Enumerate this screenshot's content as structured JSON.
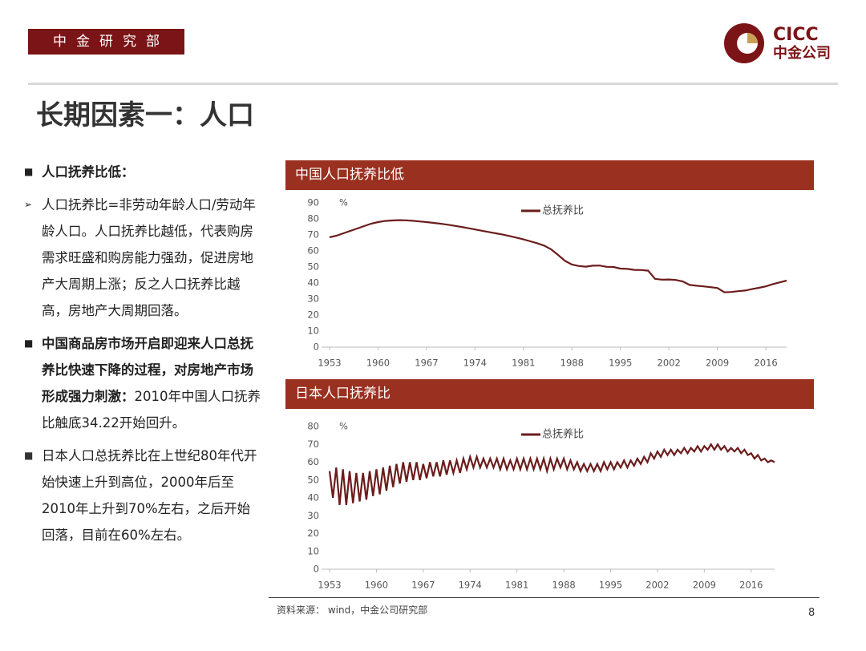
{
  "header": {
    "org": "中金研究部",
    "logo_en": "CICC",
    "logo_cn": "中金公司"
  },
  "title": "长期因素一：人口",
  "bullets": [
    {
      "marker": "square",
      "runs": [
        {
          "text": "人口抚养比低：",
          "bold": true
        }
      ]
    },
    {
      "marker": "arrow",
      "runs": [
        {
          "text": "人口抚养比=非劳动年龄人口/劳动年龄人口。人口抚养比越低，代表购房需求旺盛和购房能力强劲，促进房地产大周期上涨；反之人口抚养比越高，房地产大周期回落。",
          "bold": false
        }
      ]
    },
    {
      "marker": "square",
      "runs": [
        {
          "text": "中国商品房市场开启即迎来人口总抚养比快速下降的过程，对房地产市场形成强力刺激：",
          "bold": true
        },
        {
          "text": "2010年中国人口抚养比触底34.22开始回升。",
          "bold": false
        }
      ]
    },
    {
      "marker": "square-light",
      "runs": [
        {
          "text": "日本人口总抚养比在上世纪80年代开始快速上升到高位，2000年后至2010年上升到70%左右，之后开始回落，目前在60%左右。",
          "bold": false
        }
      ]
    }
  ],
  "chart_data": [
    {
      "type": "line",
      "title": "中国人口抚养比低",
      "y_unit": "%",
      "x": [
        1953,
        1954,
        1955,
        1956,
        1957,
        1958,
        1959,
        1960,
        1961,
        1962,
        1963,
        1964,
        1965,
        1966,
        1967,
        1968,
        1969,
        1970,
        1971,
        1972,
        1973,
        1974,
        1975,
        1976,
        1977,
        1978,
        1979,
        1980,
        1981,
        1982,
        1983,
        1984,
        1985,
        1986,
        1987,
        1988,
        1989,
        1990,
        1991,
        1992,
        1993,
        1994,
        1995,
        1996,
        1997,
        1998,
        1999,
        2000,
        2001,
        2002,
        2003,
        2004,
        2005,
        2006,
        2007,
        2008,
        2009,
        2010,
        2011,
        2012,
        2013,
        2014,
        2015,
        2016,
        2017,
        2018,
        2019
      ],
      "series": [
        {
          "name": "总抚养比",
          "color": "#6b1c1c",
          "values": [
            68.5,
            69.5,
            71,
            72.5,
            74,
            75.5,
            77,
            78,
            78.7,
            79,
            79.2,
            79.1,
            78.8,
            78.4,
            78,
            77.5,
            77,
            76.4,
            75.7,
            75,
            74.2,
            73.4,
            72.6,
            71.8,
            71,
            70.2,
            69.3,
            68.3,
            67.2,
            66,
            64.8,
            63.3,
            61,
            57.5,
            53.8,
            51.5,
            50.6,
            50.2,
            50.8,
            50.9,
            50.1,
            50,
            49,
            48.8,
            48.2,
            48.1,
            47.7,
            42.6,
            42.1,
            42.2,
            41.9,
            41,
            38.8,
            38.3,
            37.9,
            37.4,
            36.9,
            34.22,
            34.4,
            34.9,
            35.3,
            36.2,
            37,
            37.9,
            39.3,
            40.4,
            41.5
          ]
        }
      ],
      "xlim": [
        1953,
        2019
      ],
      "xticks": [
        1953,
        1960,
        1967,
        1974,
        1981,
        1988,
        1995,
        2002,
        2009,
        2016
      ],
      "ylim": [
        0,
        90
      ],
      "yticks": [
        0,
        10,
        20,
        30,
        40,
        50,
        60,
        70,
        80,
        90
      ]
    },
    {
      "type": "line",
      "title": "日本人口抚养比",
      "y_unit": "%",
      "x": [
        1953,
        1953.5,
        1954,
        1954.5,
        1955,
        1955.5,
        1956,
        1956.5,
        1957,
        1957.5,
        1958,
        1958.5,
        1959,
        1959.5,
        1960,
        1960.5,
        1961,
        1961.5,
        1962,
        1962.5,
        1963,
        1963.5,
        1964,
        1964.5,
        1965,
        1965.5,
        1966,
        1966.5,
        1967,
        1967.5,
        1968,
        1968.5,
        1969,
        1969.5,
        1970,
        1970.5,
        1971,
        1971.5,
        1972,
        1972.5,
        1973,
        1973.5,
        1974,
        1974.5,
        1975,
        1975.5,
        1976,
        1976.5,
        1977,
        1977.5,
        1978,
        1978.5,
        1979,
        1979.5,
        1980,
        1980.5,
        1981,
        1981.5,
        1982,
        1982.5,
        1983,
        1983.5,
        1984,
        1984.5,
        1985,
        1985.5,
        1986,
        1986.5,
        1987,
        1987.5,
        1988,
        1988.5,
        1989,
        1989.5,
        1990,
        1990.5,
        1991,
        1991.5,
        1992,
        1992.5,
        1993,
        1993.5,
        1994,
        1994.5,
        1995,
        1995.5,
        1996,
        1996.5,
        1997,
        1997.5,
        1998,
        1998.5,
        1999,
        1999.5,
        2000,
        2000.5,
        2001,
        2001.5,
        2002,
        2002.5,
        2003,
        2003.5,
        2004,
        2004.5,
        2005,
        2005.5,
        2006,
        2006.5,
        2007,
        2007.5,
        2008,
        2008.5,
        2009,
        2009.5,
        2010,
        2010.5,
        2011,
        2011.5,
        2012,
        2012.5,
        2013,
        2013.5,
        2014,
        2014.5,
        2015,
        2015.5,
        2016,
        2016.5,
        2017,
        2017.5,
        2018,
        2018.5,
        2019,
        2019.5
      ],
      "series": [
        {
          "name": "总抚养比",
          "color": "#6b1c1c",
          "values": [
            55,
            40,
            57,
            36,
            56,
            36,
            55,
            37,
            54,
            38,
            54,
            39,
            55,
            41,
            56,
            42,
            57,
            44,
            58,
            46,
            59,
            48,
            60,
            49,
            60,
            50,
            60,
            50,
            59,
            51,
            60,
            52,
            60,
            52,
            61,
            53,
            61,
            54,
            61,
            54,
            62,
            56,
            63,
            57,
            63,
            57,
            62,
            57,
            62,
            57,
            62,
            56,
            62,
            56,
            61,
            56,
            62,
            56,
            62,
            56,
            62,
            56,
            62,
            56,
            62,
            55,
            62,
            56,
            62,
            57,
            62,
            56,
            61,
            56,
            60,
            55,
            59,
            55,
            59,
            55,
            59,
            55,
            60,
            56,
            60,
            56,
            60,
            57,
            61,
            57,
            61,
            58,
            62,
            59,
            63,
            60,
            65,
            62,
            66,
            63,
            67,
            64,
            67,
            64,
            67,
            65,
            68,
            65,
            68,
            66,
            69,
            66,
            69,
            67,
            70,
            67,
            70,
            67,
            69,
            66,
            68,
            66,
            68,
            65,
            67,
            64,
            65,
            62,
            64,
            61,
            62,
            60,
            61,
            60
          ]
        }
      ],
      "xlim": [
        1953,
        2019.5
      ],
      "xticks": [
        1953,
        1960,
        1967,
        1974,
        1981,
        1988,
        1995,
        2002,
        2009,
        2016
      ],
      "ylim": [
        0,
        80
      ],
      "yticks": [
        0,
        10,
        20,
        30,
        40,
        50,
        60,
        70,
        80
      ]
    }
  ],
  "source": "资料来源：  wind，中金公司研究部",
  "page_number": 8
}
